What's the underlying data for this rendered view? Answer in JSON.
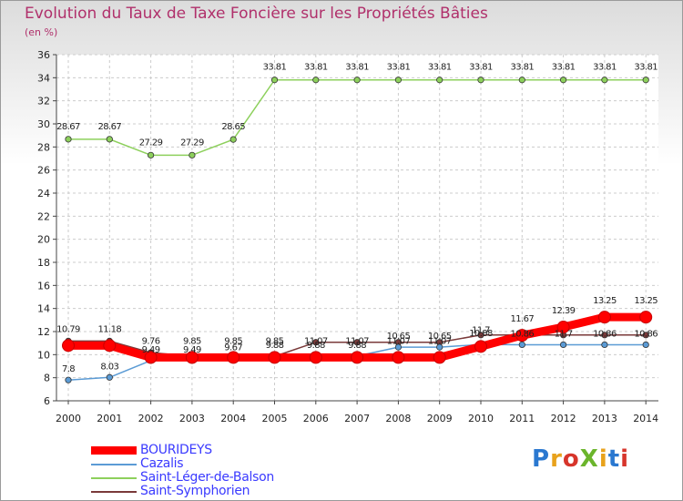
{
  "title": "Evolution du Taux de Taxe Foncière sur les Propriétés Bâties",
  "unit": "(en %)",
  "logo": "ProXiti",
  "chart_data": {
    "type": "line",
    "title": "Evolution du Taux de Taxe Foncière sur les Propriétés Bâties",
    "ylabel": "(en %)",
    "xlabel": "",
    "x": [
      "2000",
      "2001",
      "2002",
      "2003",
      "2004",
      "2005",
      "2006",
      "2007",
      "2008",
      "2009",
      "2010",
      "2011",
      "2012",
      "2013",
      "2014"
    ],
    "ylim": [
      6,
      36
    ],
    "yticks": [
      6,
      8,
      10,
      12,
      14,
      16,
      18,
      20,
      22,
      24,
      26,
      28,
      30,
      32,
      34,
      36
    ],
    "grid": true,
    "legend_position": "bottom-left",
    "series": [
      {
        "name": "BOURIDEYS",
        "color": "#ff0000",
        "values": [
          10.79,
          10.79,
          9.76,
          9.76,
          9.76,
          9.76,
          9.76,
          9.76,
          9.76,
          9.76,
          10.71,
          11.67,
          12.39,
          13.25,
          13.25
        ]
      },
      {
        "name": "Cazalis",
        "color": "#5b9bd5",
        "values": [
          7.8,
          8.03,
          9.49,
          9.49,
          9.67,
          9.88,
          9.88,
          9.88,
          10.65,
          10.65,
          10.88,
          10.86,
          10.86,
          10.86,
          10.86
        ]
      },
      {
        "name": "Saint-Léger-de-Balson",
        "color": "#8dd05c",
        "values": [
          28.67,
          28.67,
          27.29,
          27.29,
          28.65,
          33.81,
          33.81,
          33.81,
          33.81,
          33.81,
          33.81,
          33.81,
          33.81,
          33.81,
          33.81
        ]
      },
      {
        "name": "Saint-Symphorien",
        "color": "#7a3a3a",
        "values": [
          11.18,
          11.18,
          10.18,
          9.85,
          9.85,
          9.85,
          11.07,
          11.07,
          11.07,
          11.07,
          11.7,
          11.7,
          11.7,
          11.7,
          11.7
        ]
      }
    ],
    "labels_shown": [
      [
        "10.79",
        "11.18",
        "9.76",
        "9.85",
        "9.85",
        "9.85",
        "11.07",
        "11.07",
        "11.07",
        "11.07",
        "11.7",
        "11.67",
        "12.39",
        "13.25",
        "13.25"
      ],
      [
        "7.8",
        "8.03",
        "9.49",
        "9.49",
        "9.67",
        "9.88",
        "9.88",
        "9.88",
        "10.65",
        "10.65",
        "10.88",
        "10.86",
        "11.7",
        "10.86",
        "10.86"
      ]
    ]
  }
}
